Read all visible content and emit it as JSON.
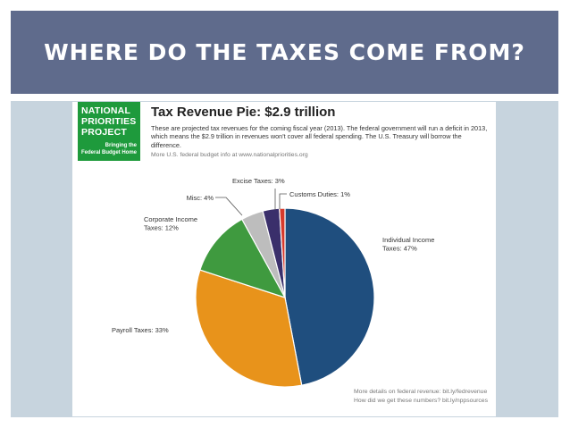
{
  "slide": {
    "title": "WHERE DO THE TAXES COME FROM?"
  },
  "logo": {
    "name_lines": [
      "NATIONAL",
      "PRIORITIES",
      "PROJECT"
    ],
    "tagline_lines": [
      "Bringing the",
      "Federal Budget Home"
    ],
    "color": "#1e9a3c"
  },
  "infographic": {
    "title": "Tax Revenue Pie: $2.9 trillion",
    "description": "These are projected tax revenues for the coming fiscal year (2013). The federal government will run a deficit in 2013, which means the $2.9 trillion in revenues won't cover all federal spending. The U.S. Treasury will borrow the difference.",
    "more_info": "More U.S. federal budget info at www.nationalpriorities.org",
    "footnote_lines": [
      "More details on federal revenue: bit.ly/fedrevenue",
      "How did we get these numbers? bit.ly/nppsources"
    ]
  },
  "chart_data": {
    "type": "pie",
    "title": "Tax Revenue Pie: $2.9 trillion",
    "unit": "%",
    "slices": [
      {
        "label_lines": [
          "Individual Income",
          "Taxes: 47%"
        ],
        "name": "Individual Income Taxes",
        "value": 47,
        "color": "#1f4e7e"
      },
      {
        "label_lines": [
          "Payroll Taxes: 33%"
        ],
        "name": "Payroll Taxes",
        "value": 33,
        "color": "#e8931b"
      },
      {
        "label_lines": [
          "Corporate Income",
          "Taxes: 12%"
        ],
        "name": "Corporate Income Taxes",
        "value": 12,
        "color": "#3f9a3f"
      },
      {
        "label_lines": [
          "Misc: 4%"
        ],
        "name": "Misc",
        "value": 4,
        "color": "#bdbdbd"
      },
      {
        "label_lines": [
          "Excise Taxes: 3%"
        ],
        "name": "Excise Taxes",
        "value": 3,
        "color": "#3a2f6b"
      },
      {
        "label_lines": [
          "Customs Duties: 1%"
        ],
        "name": "Customs Duties",
        "value": 1,
        "color": "#d63a2c"
      }
    ]
  }
}
